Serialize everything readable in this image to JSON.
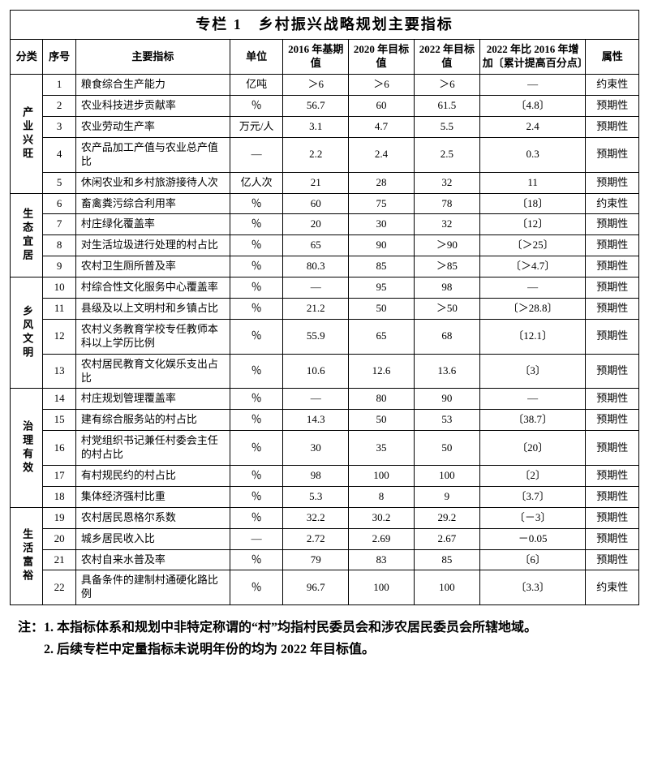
{
  "title": "专栏 1　乡村振兴战略规划主要指标",
  "headers": {
    "category": "分类",
    "seq": "序号",
    "indicator": "主要指标",
    "unit": "单位",
    "v2016": "2016 年基期值",
    "v2020": "2020 年目标值",
    "v2022": "2022 年目标值",
    "increase": "2022 年比 2016 年增加〔累计提高百分点〕",
    "attr": "属性"
  },
  "categories": [
    {
      "name": "产业兴旺",
      "rows": [
        {
          "seq": "1",
          "ind": "粮食综合生产能力",
          "unit": "亿吨",
          "v16": "＞6",
          "v20": "＞6",
          "v22": "＞6",
          "inc": "—",
          "attr": "约束性"
        },
        {
          "seq": "2",
          "ind": "农业科技进步贡献率",
          "unit": "％",
          "v16": "56.7",
          "v20": "60",
          "v22": "61.5",
          "inc": "〔4.8〕",
          "attr": "预期性"
        },
        {
          "seq": "3",
          "ind": "农业劳动生产率",
          "unit": "万元/人",
          "v16": "3.1",
          "v20": "4.7",
          "v22": "5.5",
          "inc": "2.4",
          "attr": "预期性"
        },
        {
          "seq": "4",
          "ind": "农产品加工产值与农业总产值比",
          "unit": "—",
          "v16": "2.2",
          "v20": "2.4",
          "v22": "2.5",
          "inc": "0.3",
          "attr": "预期性"
        },
        {
          "seq": "5",
          "ind": "休闲农业和乡村旅游接待人次",
          "unit": "亿人次",
          "v16": "21",
          "v20": "28",
          "v22": "32",
          "inc": "11",
          "attr": "预期性"
        }
      ]
    },
    {
      "name": "生态宜居",
      "rows": [
        {
          "seq": "6",
          "ind": "畜禽粪污综合利用率",
          "unit": "％",
          "v16": "60",
          "v20": "75",
          "v22": "78",
          "inc": "〔18〕",
          "attr": "约束性"
        },
        {
          "seq": "7",
          "ind": "村庄绿化覆盖率",
          "unit": "％",
          "v16": "20",
          "v20": "30",
          "v22": "32",
          "inc": "〔12〕",
          "attr": "预期性"
        },
        {
          "seq": "8",
          "ind": "对生活垃圾进行处理的村占比",
          "unit": "％",
          "v16": "65",
          "v20": "90",
          "v22": "＞90",
          "inc": "〔＞25〕",
          "attr": "预期性"
        },
        {
          "seq": "9",
          "ind": "农村卫生厕所普及率",
          "unit": "％",
          "v16": "80.3",
          "v20": "85",
          "v22": "＞85",
          "inc": "〔＞4.7〕",
          "attr": "预期性"
        }
      ]
    },
    {
      "name": "乡风文明",
      "rows": [
        {
          "seq": "10",
          "ind": "村综合性文化服务中心覆盖率",
          "unit": "％",
          "v16": "—",
          "v20": "95",
          "v22": "98",
          "inc": "—",
          "attr": "预期性"
        },
        {
          "seq": "11",
          "ind": "县级及以上文明村和乡镇占比",
          "unit": "％",
          "v16": "21.2",
          "v20": "50",
          "v22": "＞50",
          "inc": "〔＞28.8〕",
          "attr": "预期性"
        },
        {
          "seq": "12",
          "ind": "农村义务教育学校专任教师本科以上学历比例",
          "unit": "％",
          "v16": "55.9",
          "v20": "65",
          "v22": "68",
          "inc": "〔12.1〕",
          "attr": "预期性"
        },
        {
          "seq": "13",
          "ind": "农村居民教育文化娱乐支出占比",
          "unit": "％",
          "v16": "10.6",
          "v20": "12.6",
          "v22": "13.6",
          "inc": "〔3〕",
          "attr": "预期性"
        }
      ]
    },
    {
      "name": "治理有效",
      "rows": [
        {
          "seq": "14",
          "ind": "村庄规划管理覆盖率",
          "unit": "％",
          "v16": "—",
          "v20": "80",
          "v22": "90",
          "inc": "—",
          "attr": "预期性"
        },
        {
          "seq": "15",
          "ind": "建有综合服务站的村占比",
          "unit": "％",
          "v16": "14.3",
          "v20": "50",
          "v22": "53",
          "inc": "〔38.7〕",
          "attr": "预期性"
        },
        {
          "seq": "16",
          "ind": "村党组织书记兼任村委会主任的村占比",
          "unit": "％",
          "v16": "30",
          "v20": "35",
          "v22": "50",
          "inc": "〔20〕",
          "attr": "预期性"
        },
        {
          "seq": "17",
          "ind": "有村规民约的村占比",
          "unit": "％",
          "v16": "98",
          "v20": "100",
          "v22": "100",
          "inc": "〔2〕",
          "attr": "预期性"
        },
        {
          "seq": "18",
          "ind": "集体经济强村比重",
          "unit": "％",
          "v16": "5.3",
          "v20": "8",
          "v22": "9",
          "inc": "〔3.7〕",
          "attr": "预期性"
        }
      ]
    },
    {
      "name": "生活富裕",
      "rows": [
        {
          "seq": "19",
          "ind": "农村居民恩格尔系数",
          "unit": "％",
          "v16": "32.2",
          "v20": "30.2",
          "v22": "29.2",
          "inc": "〔－3〕",
          "attr": "预期性"
        },
        {
          "seq": "20",
          "ind": "城乡居民收入比",
          "unit": "—",
          "v16": "2.72",
          "v20": "2.69",
          "v22": "2.67",
          "inc": "－0.05",
          "attr": "预期性"
        },
        {
          "seq": "21",
          "ind": "农村自来水普及率",
          "unit": "％",
          "v16": "79",
          "v20": "83",
          "v22": "85",
          "inc": "〔6〕",
          "attr": "预期性"
        },
        {
          "seq": "22",
          "ind": "具备条件的建制村通硬化路比例",
          "unit": "％",
          "v16": "96.7",
          "v20": "100",
          "v22": "100",
          "inc": "〔3.3〕",
          "attr": "约束性"
        }
      ]
    }
  ],
  "notes_label": "注：",
  "notes": [
    "1. 本指标体系和规划中非特定称谓的“村”均指村民委员会和涉农居民委员会所辖地域。",
    "2. 后续专栏中定量指标未说明年份的均为 2022 年目标值。"
  ]
}
